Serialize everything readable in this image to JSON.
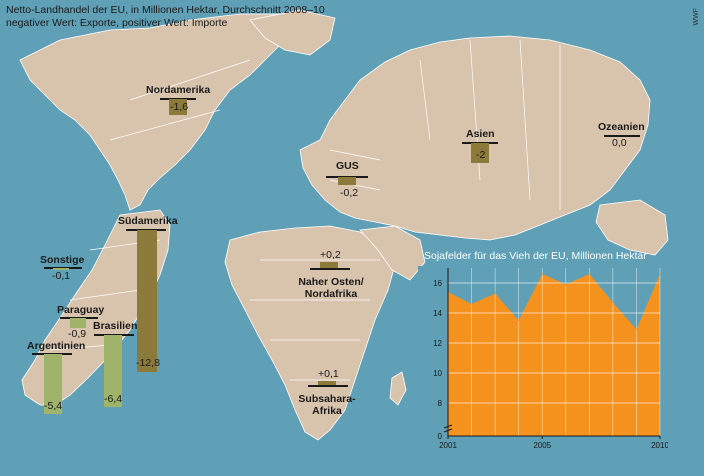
{
  "title": "Netto-Landhandel der EU, in Millionen Hektar, Durchschnitt 2008–10",
  "subtitle": "negativer Wert: Exporte, positiver Wert: Importe",
  "credit": "WWF",
  "colors": {
    "ocean": "#5fa0b6",
    "land": "#d8c3ac",
    "bar_dark": "#8b7a3a",
    "bar_light": "#9fb36a",
    "area": "#f5921e"
  },
  "regions": [
    {
      "name": "Nordamerika",
      "value_label": "-1,6"
    },
    {
      "name": "Asien",
      "value_label": "-2"
    },
    {
      "name": "Ozeanien",
      "value_label": "0,0"
    },
    {
      "name": "GUS",
      "value_label": "-0,2"
    },
    {
      "name": "Naher Osten/ Nordafrika",
      "value_label": "+0,2"
    },
    {
      "name": "Subsahara-Afrika",
      "value_label": "+0,1"
    },
    {
      "name": "Südamerika",
      "value_label": "-12,8"
    },
    {
      "name": "Sonstige",
      "value_label": "-0,1"
    },
    {
      "name": "Paraguay",
      "value_label": "-0,9"
    },
    {
      "name": "Brasilien",
      "value_label": "-6,4"
    },
    {
      "name": "Argentinien",
      "value_label": "-5,4"
    }
  ],
  "chart_data": {
    "type": "area",
    "title": "Sojafelder für das Vieh der EU, Millionen Hektar",
    "x": [
      2001,
      2002,
      2003,
      2004,
      2005,
      2006,
      2007,
      2008,
      2009,
      2010
    ],
    "values": [
      15.4,
      14.6,
      15.3,
      13.5,
      16.6,
      15.9,
      16.6,
      14.7,
      12.9,
      16.6
    ],
    "x_tick_labels": [
      "2001",
      "2005",
      "2010"
    ],
    "y_ticks": [
      8,
      10,
      12,
      14,
      16
    ],
    "y_tick_labels": [
      "8",
      "10",
      "12",
      "14",
      "16"
    ],
    "y_break_label": "0",
    "ylim": [
      7,
      17
    ],
    "grid": true
  }
}
